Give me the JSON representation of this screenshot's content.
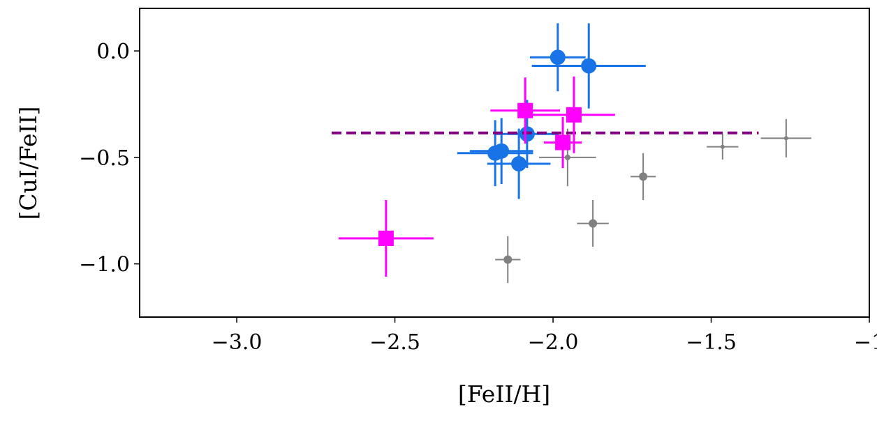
{
  "chart_data": {
    "type": "scatter",
    "xlabel": "[FeII/H]",
    "ylabel": "[CuI/FeII]",
    "xlim": [
      -3.307,
      -1.0
    ],
    "ylim": [
      -1.25,
      0.2
    ],
    "xticks": [
      -3.0,
      -2.5,
      -2.0,
      -1.5,
      -1.0
    ],
    "xtick_labels": [
      "−3.0",
      "−2.5",
      "−2.0",
      "−1.5",
      "−1"
    ],
    "yticks": [
      0.0,
      -0.5,
      -1.0
    ],
    "ytick_labels": [
      "0.0",
      "−0.5",
      "−1.0"
    ],
    "grid": false,
    "series": [
      {
        "marker": "circle",
        "color": "#1874e6",
        "size": "large",
        "points": [
          {
            "x": -1.985,
            "y": -0.03,
            "xerr": 0.088,
            "yerr": 0.16
          },
          {
            "x": -1.887,
            "y": -0.07,
            "xerr": 0.18,
            "yerr": 0.2
          },
          {
            "x": -2.082,
            "y": -0.39,
            "xerr": 0.1,
            "yerr": 0.16
          },
          {
            "x": -2.183,
            "y": -0.48,
            "xerr": 0.12,
            "yerr": 0.155
          },
          {
            "x": -2.163,
            "y": -0.47,
            "xerr": 0.1,
            "yerr": 0.155
          },
          {
            "x": -2.108,
            "y": -0.53,
            "xerr": 0.1,
            "yerr": 0.165
          }
        ]
      },
      {
        "marker": "square",
        "color": "#ff00ff",
        "size": "large",
        "points": [
          {
            "x": -2.088,
            "y": -0.28,
            "xerr": 0.11,
            "yerr": 0.155
          },
          {
            "x": -1.934,
            "y": -0.3,
            "xerr": 0.13,
            "yerr": 0.18
          },
          {
            "x": -1.969,
            "y": -0.43,
            "xerr": 0.06,
            "yerr": 0.12
          },
          {
            "x": -2.528,
            "y": -0.88,
            "xerr": 0.15,
            "yerr": 0.18
          }
        ]
      },
      {
        "marker": "circle",
        "color": "#808080",
        "size": "small",
        "points": [
          {
            "x": -1.954,
            "y": -0.5,
            "xerr": 0.09,
            "yerr": 0.135,
            "r": 4
          },
          {
            "x": -1.715,
            "y": -0.59,
            "xerr": 0.04,
            "yerr": 0.11,
            "r": 6
          },
          {
            "x": -1.874,
            "y": -0.81,
            "xerr": 0.05,
            "yerr": 0.11,
            "r": 6
          },
          {
            "x": -2.143,
            "y": -0.98,
            "xerr": 0.04,
            "yerr": 0.11,
            "r": 6
          },
          {
            "x": -1.464,
            "y": -0.45,
            "xerr": 0.05,
            "yerr": 0.06,
            "r": 3
          },
          {
            "x": -1.263,
            "y": -0.41,
            "xerr": 0.08,
            "yerr": 0.09,
            "r": 3
          }
        ]
      }
    ],
    "reference_line": {
      "y": -0.385,
      "x_start": -2.7,
      "x_end": -1.35,
      "style": "dashed",
      "color": "#800080"
    }
  }
}
